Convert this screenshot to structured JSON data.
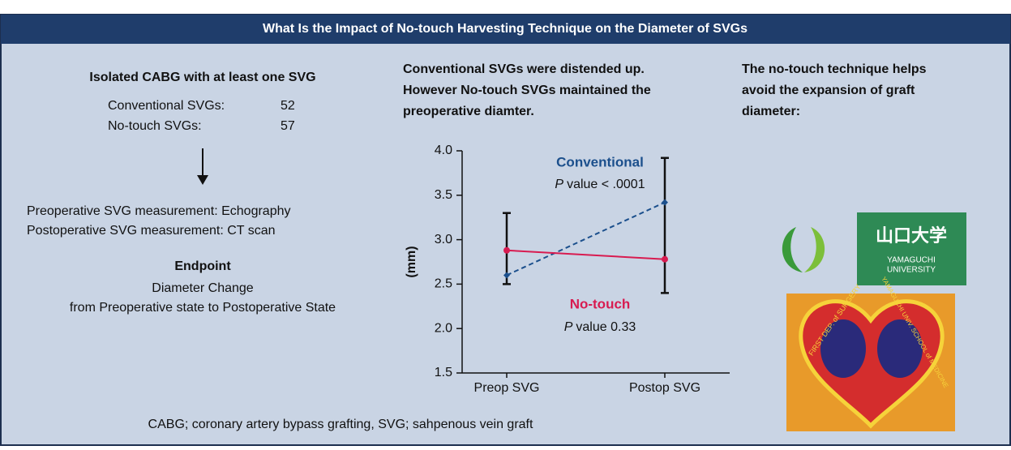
{
  "header": {
    "title": "What Is the Impact of No-touch Harvesting Technique on the Diameter of SVGs"
  },
  "left": {
    "title": "Isolated CABG with at least one SVG",
    "counts": [
      {
        "label": "Conventional SVGs:",
        "value": 52
      },
      {
        "label": "No-touch SVGs:",
        "value": 57
      }
    ],
    "measurements": [
      "Preoperative SVG measurement: Echography",
      "Postoperative SVG measurement: CT scan"
    ],
    "endpoint_title": "Endpoint",
    "endpoint_lines": [
      "Diameter Change",
      "from Preoperative state to Postoperative State"
    ]
  },
  "middle": {
    "heading": [
      "Conventional SVGs were distended up.",
      "However No-touch SVGs maintained the",
      "preoperative diamter."
    ]
  },
  "right": {
    "heading": [
      "The no-touch technique helps",
      "avoid the expansion of graft",
      "diameter:"
    ],
    "university_logo": {
      "kanji": "山口大学",
      "lines": [
        "YAMAGUCHI",
        "UNIVERSITY"
      ]
    },
    "emblem": {
      "left_text": "FIRST DEP. of SURGERY",
      "right_text": "YAMAGUCHI UNIV. SCHOOL of MEDICINE"
    }
  },
  "footnote": "CABG; coronary artery bypass grafting, SVG; sahpenous vein graft",
  "chart_data": {
    "type": "line",
    "ylabel": "(mm)",
    "categories": [
      "Preop SVG",
      "Postop SVG"
    ],
    "series": [
      {
        "name": "Conventional",
        "color": "#1b4f8c",
        "dash": true,
        "marker": "diamond",
        "values": [
          2.6,
          3.42
        ],
        "p_value": "value < .0001"
      },
      {
        "name": "No-touch",
        "color": "#d81b50",
        "dash": false,
        "marker": "circle",
        "values": [
          2.88,
          2.78
        ],
        "p_value": "value 0.33"
      }
    ],
    "p_symbol": "P",
    "error_bars": [
      {
        "low": 2.5,
        "high": 3.3
      },
      {
        "low": 2.4,
        "high": 3.92
      }
    ],
    "ylim": [
      1.5,
      4.0
    ],
    "yticks": [
      1.5,
      {
        "value": 2,
        "label": "2.0"
      },
      2.5,
      {
        "value": 3,
        "label": "3.0"
      },
      3.5,
      {
        "value": 4,
        "label": "4.0"
      }
    ]
  }
}
